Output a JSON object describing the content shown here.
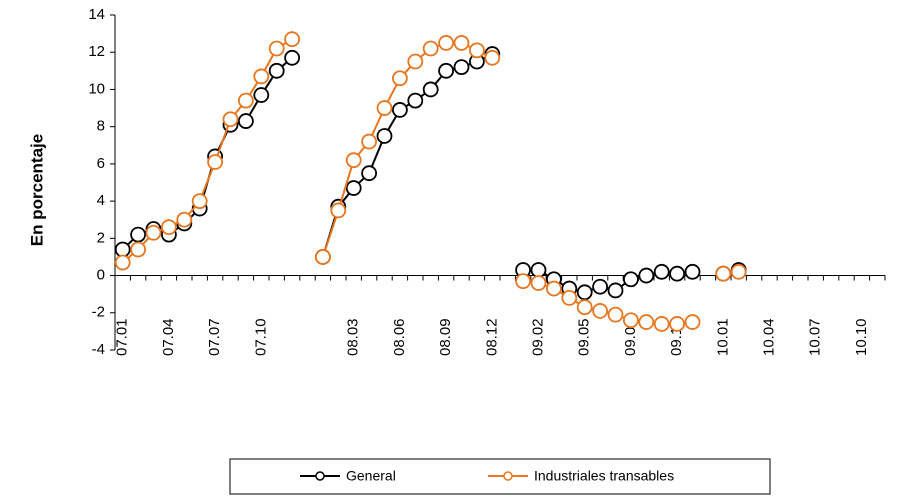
{
  "chart_data": {
    "type": "line",
    "y_label": "En porcentaje",
    "categories": [
      "07.01",
      null,
      null,
      "07.04",
      null,
      null,
      "07.07",
      null,
      null,
      "07.10",
      null,
      null,
      null,
      null,
      null,
      "08.03",
      null,
      null,
      "08.06",
      null,
      null,
      "08.09",
      null,
      null,
      "08.12",
      null,
      null,
      "09.02",
      null,
      null,
      "09.05",
      null,
      null,
      "09.08",
      null,
      null,
      "09.11",
      null,
      null,
      "10.01",
      null,
      null,
      "10.04",
      null,
      null,
      "10.07",
      null,
      null,
      "10.10",
      null
    ],
    "series": [
      {
        "name": "General",
        "color": "#000000",
        "values": [
          1.4,
          2.2,
          2.5,
          2.2,
          2.8,
          3.6,
          6.4,
          8.1,
          8.3,
          9.7,
          11.0,
          11.7,
          null,
          1.0,
          3.7,
          4.7,
          5.5,
          7.5,
          8.9,
          9.4,
          10.0,
          11.0,
          11.2,
          11.5,
          11.9,
          null,
          0.3,
          0.3,
          -0.2,
          -0.7,
          -0.9,
          -0.6,
          -0.8,
          -0.2,
          0.0,
          0.2,
          0.1,
          0.2,
          null,
          0.1,
          0.3,
          null,
          null,
          null,
          null,
          null,
          null,
          null,
          null,
          null
        ]
      },
      {
        "name": "Industriales transables",
        "color": "#e8761e",
        "values": [
          0.7,
          1.4,
          2.3,
          2.6,
          3.0,
          4.0,
          6.1,
          8.4,
          9.4,
          10.7,
          12.2,
          12.7,
          null,
          1.0,
          3.5,
          6.2,
          7.2,
          9.0,
          10.6,
          11.5,
          12.2,
          12.5,
          12.5,
          12.1,
          11.7,
          null,
          -0.3,
          -0.4,
          -0.7,
          -1.2,
          -1.7,
          -1.9,
          -2.1,
          -2.4,
          -2.5,
          -2.6,
          -2.6,
          -2.5,
          null,
          0.1,
          0.2,
          null,
          null,
          null,
          null,
          null,
          null,
          null,
          null,
          null
        ]
      }
    ],
    "ylim": [
      -4,
      14
    ],
    "yticks": [
      -4,
      -2,
      0,
      2,
      4,
      6,
      8,
      10,
      12,
      14
    ],
    "grid": false
  }
}
